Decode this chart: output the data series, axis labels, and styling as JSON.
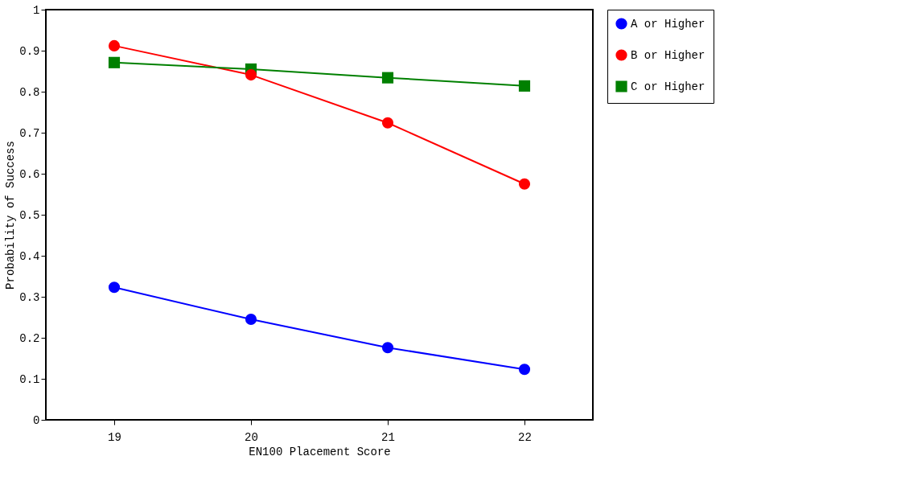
{
  "chart_data": {
    "type": "line",
    "xlabel": "EN100 Placement Score",
    "ylabel": "Probability of Success",
    "x": [
      19,
      20,
      21,
      22
    ],
    "xlim": [
      18.5,
      22.5
    ],
    "xticks": [
      19,
      20,
      21,
      22
    ],
    "ylim": [
      0,
      1
    ],
    "yticks": [
      0,
      0.1,
      0.2,
      0.3,
      0.4,
      0.5,
      0.6,
      0.7,
      0.8,
      0.9,
      1
    ],
    "grid": false,
    "legend": "top right",
    "line_style": "solid",
    "series": [
      {
        "name": "A or Higher",
        "color": "#0000ff",
        "marker": "circle",
        "values": [
          0.323,
          0.245,
          0.176,
          0.123
        ]
      },
      {
        "name": "B or Higher",
        "color": "#ff0000",
        "marker": "circle",
        "values": [
          0.912,
          0.841,
          0.724,
          0.575
        ]
      },
      {
        "name": "C or Higher",
        "color": "#008000",
        "marker": "square",
        "values": [
          0.871,
          0.855,
          0.834,
          0.814
        ]
      }
    ]
  }
}
